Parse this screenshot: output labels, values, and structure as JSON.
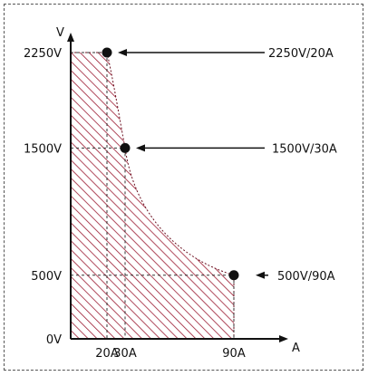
{
  "chart_data": {
    "type": "area",
    "title": "",
    "xlabel": "A",
    "ylabel": "V",
    "xlim": [
      0,
      90
    ],
    "ylim": [
      0,
      2250
    ],
    "x_ticks": [
      "20A",
      "30A",
      "90A"
    ],
    "y_ticks": [
      "0V",
      "500V",
      "1500V",
      "2250V"
    ],
    "region_color": "#9c1c33",
    "points": [
      {
        "x": 20,
        "y": 2250,
        "label": "2250V/20A"
      },
      {
        "x": 30,
        "y": 1500,
        "label": "1500V/30A"
      },
      {
        "x": 90,
        "y": 500,
        "label": "500V/90A"
      }
    ],
    "x_tick_values": [
      20,
      30,
      90
    ],
    "y_tick_values": [
      0,
      500,
      1500,
      2250
    ]
  }
}
